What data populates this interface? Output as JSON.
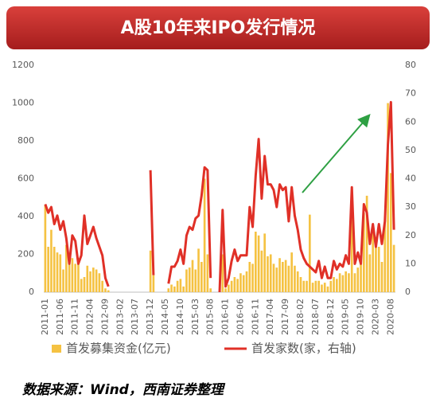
{
  "chart_data": {
    "type": "bar-line",
    "title": "A股10年来IPO发行情况",
    "note": "数据来源：Wind，西南证券整理",
    "categories": [
      "2011-01",
      null,
      null,
      null,
      null,
      "2011-06",
      null,
      null,
      null,
      null,
      "2011-11",
      null,
      null,
      null,
      null,
      "2012-04",
      null,
      null,
      null,
      null,
      "2012-09",
      null,
      null,
      null,
      null,
      "2013-02",
      null,
      null,
      null,
      null,
      "2013-07",
      null,
      null,
      null,
      null,
      "2013-12",
      null,
      null,
      null,
      null,
      "2014-05",
      null,
      null,
      null,
      null,
      "2014-10",
      null,
      null,
      null,
      null,
      "2015-03",
      null,
      null,
      null,
      null,
      "2015-08",
      null,
      null,
      null,
      null,
      "2016-01",
      null,
      null,
      null,
      null,
      "2016-06",
      null,
      null,
      null,
      null,
      "2016-11",
      null,
      null,
      null,
      null,
      "2017-04",
      null,
      null,
      null,
      null,
      "2017-09",
      null,
      null,
      null,
      null,
      "2018-02",
      null,
      null,
      null,
      null,
      "2018-07",
      null,
      null,
      null,
      null,
      "2018-12",
      null,
      null,
      null,
      null,
      "2019-05",
      null,
      null,
      null,
      null,
      "2019-10",
      null,
      null,
      null,
      null,
      "2020-03",
      null,
      null,
      null,
      null,
      "2020-08",
      null
    ],
    "series": [
      {
        "name": "首发募集资金(亿元)",
        "type": "bar",
        "color": "#f5c242",
        "values": [
          460,
          240,
          330,
          240,
          210,
          200,
          120,
          250,
          170,
          180,
          150,
          180,
          70,
          80,
          140,
          110,
          130,
          120,
          100,
          60,
          20,
          10,
          0,
          0,
          0,
          0,
          0,
          0,
          0,
          0,
          0,
          0,
          0,
          0,
          0,
          220,
          90,
          0,
          0,
          0,
          0,
          20,
          40,
          30,
          60,
          70,
          30,
          120,
          130,
          170,
          120,
          230,
          160,
          600,
          200,
          20,
          0,
          0,
          0,
          200,
          20,
          40,
          60,
          80,
          70,
          100,
          90,
          110,
          160,
          150,
          320,
          300,
          220,
          310,
          190,
          200,
          150,
          130,
          180,
          160,
          170,
          140,
          210,
          140,
          110,
          80,
          60,
          60,
          410,
          50,
          60,
          60,
          40,
          50,
          30,
          60,
          80,
          70,
          100,
          90,
          110,
          100,
          520,
          100,
          130,
          150,
          420,
          510,
          200,
          320,
          290,
          240,
          160,
          400,
          1000,
          630,
          250
        ]
      },
      {
        "name": "首发家数(家，右轴)",
        "type": "line",
        "axis": "y2",
        "color": "#e03027",
        "values": [
          31,
          28,
          30,
          24,
          27,
          22,
          25,
          19,
          10,
          20,
          18,
          10,
          13,
          27,
          17,
          20,
          23,
          19,
          16,
          13,
          5,
          2,
          null,
          null,
          null,
          null,
          null,
          null,
          null,
          null,
          null,
          null,
          null,
          null,
          null,
          43,
          6,
          null,
          null,
          null,
          null,
          3,
          9,
          9,
          11,
          15,
          10,
          20,
          23,
          22,
          26,
          27,
          34,
          44,
          43,
          5,
          null,
          null,
          0,
          29,
          2,
          5,
          11,
          15,
          11,
          13,
          13,
          13,
          30,
          23,
          41,
          54,
          33,
          48,
          38,
          38,
          36,
          30,
          38,
          36,
          37,
          25,
          37,
          27,
          22,
          15,
          12,
          10,
          9,
          8,
          7,
          11,
          5,
          9,
          5,
          5,
          11,
          8,
          10,
          9,
          13,
          10,
          37,
          10,
          14,
          10,
          31,
          28,
          17,
          24,
          16,
          24,
          17,
          25,
          52,
          67,
          22
        ]
      }
    ],
    "ylim": [
      0,
      1200
    ],
    "yticks": [
      0,
      200,
      400,
      600,
      800,
      1000,
      1200
    ],
    "y2lim": [
      0,
      80
    ],
    "y2ticks": [
      0,
      10,
      20,
      30,
      40,
      50,
      60,
      70,
      80
    ],
    "legend": "bottom"
  }
}
